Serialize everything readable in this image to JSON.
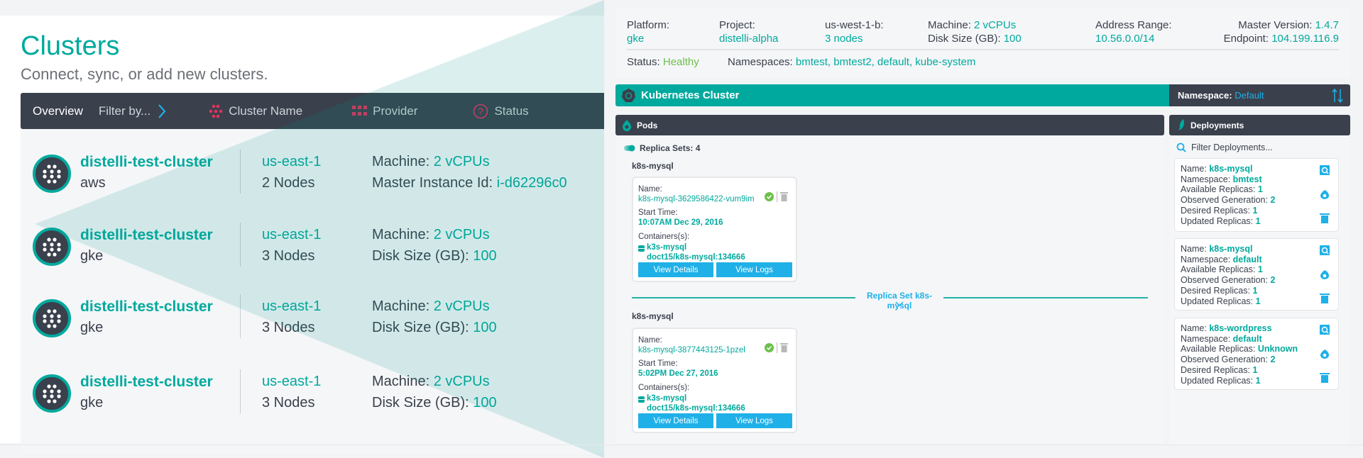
{
  "clusters_page": {
    "title": "Clusters",
    "subtitle": "Connect, sync, or add new clusters.",
    "toolbar": {
      "overview": "Overview",
      "filter": "Filter by...",
      "cluster_name": "Cluster Name",
      "provider": "Provider",
      "status": "Status"
    },
    "rows": [
      {
        "name": "distelli-test-cluster",
        "provider": "aws",
        "region": "us-east-1",
        "nodes": "2 Nodes",
        "machine_label": "Machine:",
        "machine": "2 vCPUs",
        "detail_label": "Master Instance Id:",
        "detail": "i-d62296c0"
      },
      {
        "name": "distelli-test-cluster",
        "provider": "gke",
        "region": "us-east-1",
        "nodes": "3 Nodes",
        "machine_label": "Machine:",
        "machine": "2 vCPUs",
        "detail_label": "Disk Size (GB):",
        "detail": "100"
      },
      {
        "name": "distelli-test-cluster",
        "provider": "gke",
        "region": "us-east-1",
        "nodes": "3 Nodes",
        "machine_label": "Machine:",
        "machine": "2 vCPUs",
        "detail_label": "Disk Size (GB):",
        "detail": "100"
      },
      {
        "name": "distelli-test-cluster",
        "provider": "gke",
        "region": "us-east-1",
        "nodes": "3 Nodes",
        "machine_label": "Machine:",
        "machine": "2 vCPUs",
        "detail_label": "Disk Size (GB):",
        "detail": "100"
      }
    ]
  },
  "cluster_detail": {
    "info": {
      "platform_label": "Platform:",
      "platform": "gke",
      "project_label": "Project:",
      "project": "distelli-alpha",
      "zone_label": "us-west-1-b:",
      "zone": "3 nodes",
      "machine_label": "Machine:",
      "machine": "2 vCPUs",
      "disk_label": "Disk Size (GB):",
      "disk": "100",
      "address_label": "Address Range:",
      "address": "10.56.0.0/14",
      "master_label": "Master Version:",
      "master": "1.4.7",
      "endpoint_label": "Endpoint:",
      "endpoint": "104.199.116.9",
      "status_label": "Status:",
      "status": "Healthy",
      "namespaces_label": "Namespaces:",
      "namespaces": "bmtest, bmtest2, default, kube-system"
    },
    "kube_bar": {
      "title": "Kubernetes Cluster",
      "namespace_label": "Namespace:",
      "namespace": "Default"
    },
    "pods": {
      "title": "Pods",
      "replica_sets": "Replica Sets: 4",
      "divider": "Replica Set k8s-mysql",
      "groups": [
        {
          "name": "k8s-mysql",
          "pod": {
            "name_label": "Name:",
            "name": "k8s-mysql-3629586422-vum9im",
            "start_label": "Start Time:",
            "start": "10:07AM Dec 29, 2016",
            "containers_label": "Containers(s):",
            "container": "k3s-mysql",
            "image": "doct15/k8s-mysql:134666",
            "details": "View Details",
            "logs": "View Logs"
          }
        },
        {
          "name": "k8s-mysql",
          "pod": {
            "name_label": "Name:",
            "name": "k8s-mysql-3877443125-1pzel",
            "start_label": "Start Time:",
            "start": "5:02PM Dec 27, 2016",
            "containers_label": "Containers(s):",
            "container": "k3s-mysql",
            "image": "doct15/k8s-mysql:134666",
            "details": "View Details",
            "logs": "View Logs"
          }
        }
      ]
    },
    "deployments": {
      "title": "Deployments",
      "filter_placeholder": "Filter Deployments...",
      "labels": {
        "name": "Name:",
        "namespace": "Namespace:",
        "available": "Available Replicas:",
        "observed": "Observed Generation:",
        "desired": "Desired Replicas:",
        "updated": "Updated Replicas:"
      },
      "items": [
        {
          "name": "k8s-mysql",
          "namespace": "bmtest",
          "available": "1",
          "observed": "2",
          "desired": "1",
          "updated": "1"
        },
        {
          "name": "k8s-mysql",
          "namespace": "default",
          "available": "1",
          "observed": "2",
          "desired": "1",
          "updated": "1"
        },
        {
          "name": "k8s-wordpress",
          "namespace": "default",
          "available": "Unknown",
          "observed": "2",
          "desired": "1",
          "updated": "1"
        }
      ]
    }
  },
  "colors": {
    "teal": "#00a99d",
    "dark": "#3a404c",
    "blue": "#1fb0e8",
    "healthy": "#6cc04a",
    "accent_red": "#e0335e"
  }
}
